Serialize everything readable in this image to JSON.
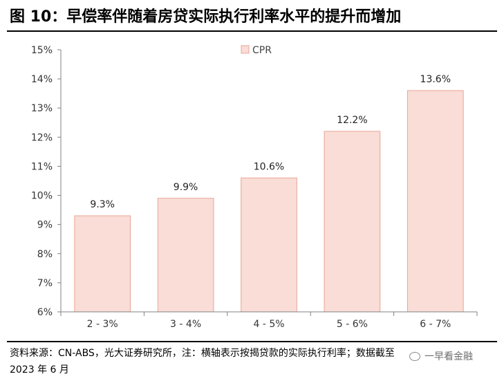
{
  "figure": {
    "title": "图 10：早偿率伴随着房贷实际执行利率水平的提升而增加",
    "source": "资料来源：CN-ABS，光大证券研究所，注：横轴表示按揭贷款的实际执行利率；数据截至 2023 年 6 月",
    "watermark": "一早看金融"
  },
  "colors": {
    "bar_fill": "#f9ddd6",
    "bar_stroke": "#e8a597",
    "axis": "#808080"
  },
  "chart_data": {
    "type": "bar",
    "categories": [
      "2 - 3%",
      "3 - 4%",
      "4 - 5%",
      "5 - 6%",
      "6 - 7%"
    ],
    "series": [
      {
        "name": "CPR",
        "values": [
          9.3,
          9.9,
          10.6,
          12.2,
          13.6
        ],
        "labels": [
          "9.3%",
          "9.9%",
          "10.6%",
          "12.2%",
          "13.6%"
        ]
      }
    ],
    "ylim": [
      6,
      15
    ],
    "yticks": [
      6,
      7,
      8,
      9,
      10,
      11,
      12,
      13,
      14,
      15
    ],
    "ytick_labels": [
      "6%",
      "7%",
      "8%",
      "9%",
      "10%",
      "11%",
      "12%",
      "13%",
      "14%",
      "15%"
    ],
    "legend_position": "top-center",
    "grid": false
  }
}
